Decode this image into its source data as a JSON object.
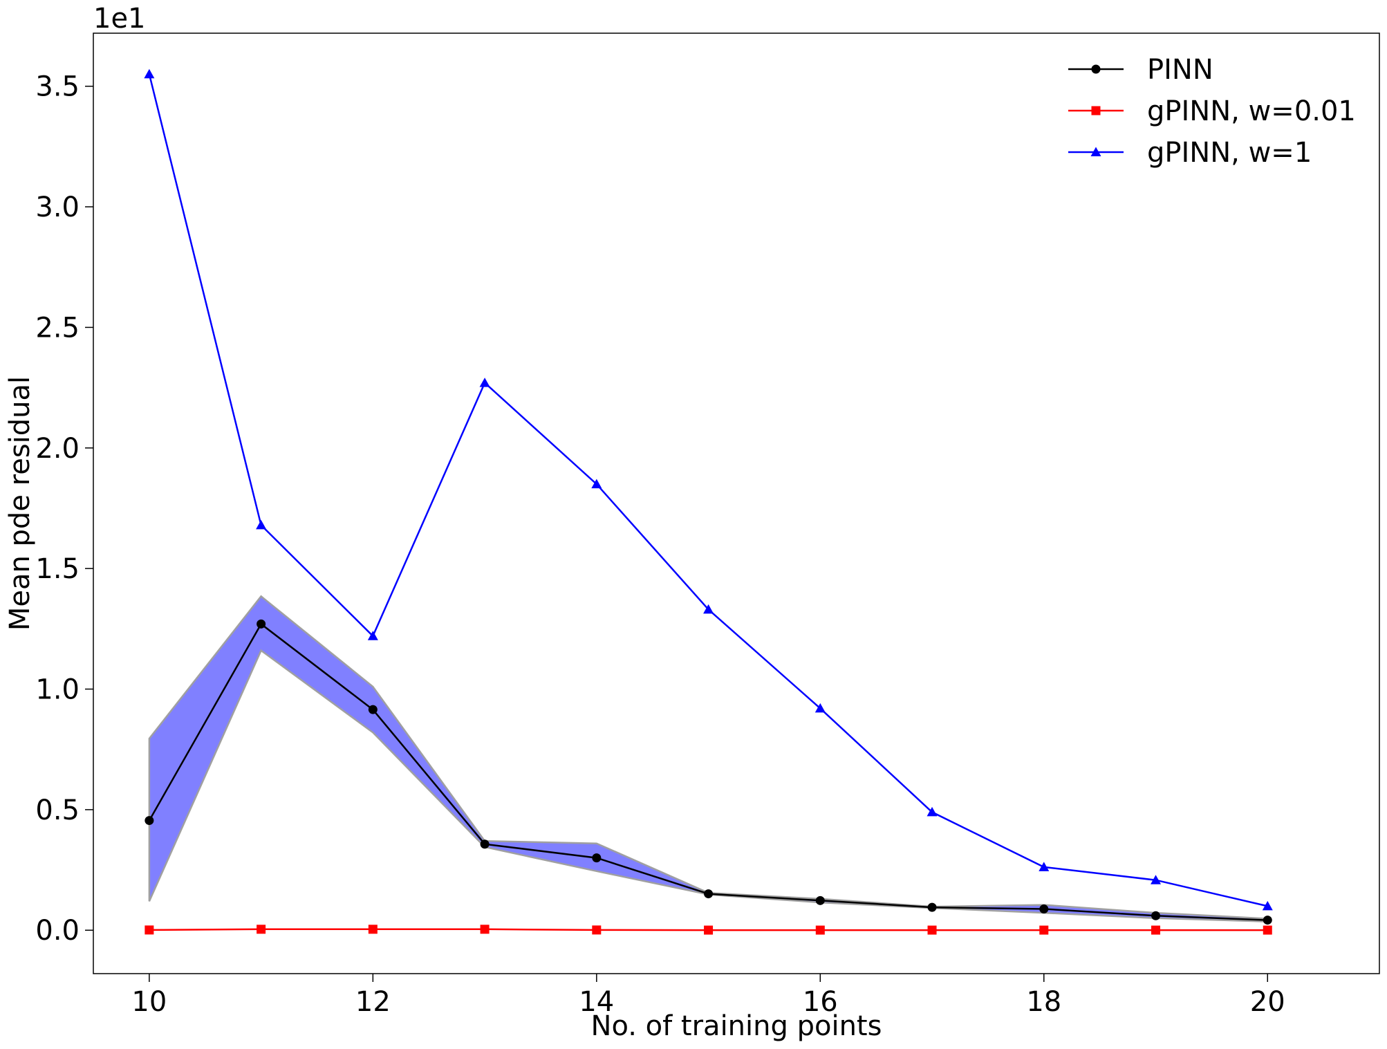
{
  "chart_data": {
    "type": "line",
    "title": "",
    "xlabel": "No. of training points",
    "ylabel": "Mean pde residual",
    "y_offset_text": "1e1",
    "y_scale_factor": 10,
    "xlim": [
      9.5,
      21.0
    ],
    "ylim": [
      -0.18,
      3.72
    ],
    "x_ticks": [
      10,
      12,
      14,
      16,
      18,
      20
    ],
    "x_tick_labels": [
      "10",
      "12",
      "14",
      "16",
      "18",
      "20"
    ],
    "y_ticks": [
      0.0,
      0.5,
      1.0,
      1.5,
      2.0,
      2.5,
      3.0,
      3.5
    ],
    "y_tick_labels": [
      "0.0",
      "0.5",
      "1.0",
      "1.5",
      "2.0",
      "2.5",
      "3.0",
      "3.5"
    ],
    "grid": false,
    "legend_position": "top-right",
    "x": [
      10,
      11,
      12,
      13,
      14,
      15,
      16,
      17,
      18,
      19,
      20
    ],
    "series": [
      {
        "name": "PINN",
        "color": "#000000",
        "marker": "circle",
        "values": [
          0.455,
          1.27,
          0.915,
          0.357,
          0.3,
          0.151,
          0.123,
          0.095,
          0.088,
          0.06,
          0.042
        ],
        "band_upper": [
          0.795,
          1.385,
          1.01,
          0.37,
          0.36,
          0.155,
          0.13,
          0.098,
          0.105,
          0.072,
          0.048
        ],
        "band_lower": [
          0.12,
          1.16,
          0.82,
          0.345,
          0.245,
          0.148,
          0.115,
          0.092,
          0.072,
          0.05,
          0.036
        ],
        "band_color": "#8080ff"
      },
      {
        "name": "gPINN, w=0.01",
        "color": "#ff0000",
        "marker": "square",
        "values": [
          0.001,
          0.004,
          0.004,
          0.004,
          0.001,
          0.0005,
          0.0005,
          0.0005,
          0.0005,
          0.0005,
          0.0005
        ]
      },
      {
        "name": "gPINN, w=1",
        "color": "#0000ff",
        "marker": "triangle",
        "values": [
          3.55,
          1.68,
          1.22,
          2.27,
          1.85,
          1.33,
          0.92,
          0.49,
          0.262,
          0.208,
          0.1
        ]
      }
    ]
  }
}
